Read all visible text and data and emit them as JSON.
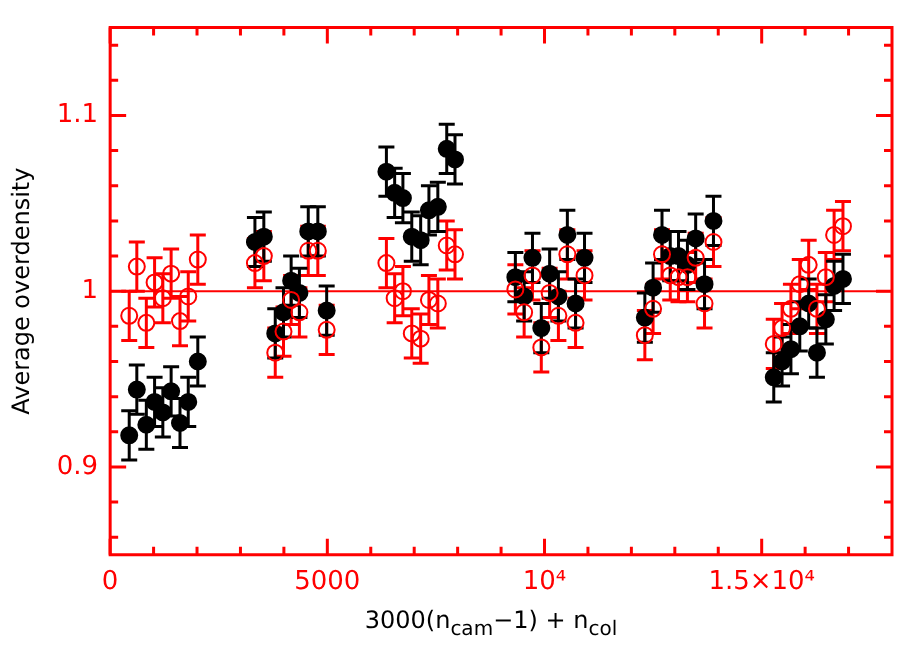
{
  "chart_data": {
    "type": "scatter",
    "xlabel": "3000(n$_{cam}$−1) + n$_{col}$",
    "ylabel": "Average overdensity",
    "xlim": [
      0,
      18000
    ],
    "ylim": [
      0.85,
      1.15
    ],
    "xticks": [
      0,
      {
        "value": 1000,
        "label": null
      },
      {
        "value": 2000,
        "label": null
      },
      {
        "value": 3000,
        "label": null
      },
      {
        "value": 4000,
        "label": null
      },
      5000,
      {
        "value": 6000,
        "label": null
      },
      {
        "value": 7000,
        "label": null
      },
      {
        "value": 8000,
        "label": null
      },
      {
        "value": 9000,
        "label": null
      },
      {
        "value": 10000,
        "label": "10⁴"
      },
      {
        "value": 11000,
        "label": null
      },
      {
        "value": 12000,
        "label": null
      },
      {
        "value": 13000,
        "label": null
      },
      {
        "value": 14000,
        "label": null
      },
      {
        "value": 15000,
        "label": "1.5×10⁴"
      },
      {
        "value": 16000,
        "label": null
      },
      {
        "value": 17000,
        "label": null
      }
    ],
    "yticks": [
      {
        "value": 0.86,
        "label": null
      },
      {
        "value": 0.88,
        "label": null
      },
      0.9,
      {
        "value": 0.92,
        "label": null
      },
      {
        "value": 0.94,
        "label": null
      },
      {
        "value": 0.96,
        "label": null
      },
      {
        "value": 0.98,
        "label": null
      },
      1,
      {
        "value": 1.02,
        "label": null
      },
      {
        "value": 1.04,
        "label": null
      },
      {
        "value": 1.06,
        "label": null
      },
      {
        "value": 1.08,
        "label": null
      },
      1.1,
      {
        "value": 1.12,
        "label": null
      },
      {
        "value": 1.14,
        "label": null
      }
    ],
    "grid": false,
    "legend": false,
    "marker": "circle",
    "ref_lines": [
      {
        "axis": "y",
        "value": 1,
        "color": "#ff0000"
      }
    ],
    "series": [
      {
        "color": "#ff0000",
        "x": [
          439,
          614,
          833,
          1023,
          1213,
          1404,
          1608,
          1798,
          2018,
          3333,
          3538,
          3801,
          3991,
          4167,
          4357,
          4561,
          4781,
          4985,
          6360,
          6550,
          6740,
          6944,
          7149,
          7339,
          7544,
          7749,
          7939,
          9329,
          9531,
          9723,
          9926,
          10118,
          10320,
          10526,
          10715,
          10921,
          12310,
          12500,
          12705,
          12895,
          13085,
          13290,
          13480,
          13684,
          13890,
          15278,
          15469,
          15673,
          15877,
          16082,
          16272,
          16477,
          16667,
          16871
        ],
        "values": [
          0.986,
          1.014,
          0.982,
          1.005,
          0.996,
          1.01,
          0.983,
          0.997,
          1.018,
          1.016,
          1.02,
          0.965,
          0.977,
          0.995,
          0.988,
          1.023,
          1.023,
          0.978,
          1.016,
          0.996,
          1.0,
          0.976,
          0.973,
          0.995,
          0.993,
          1.026,
          1.021,
          1.001,
          0.988,
          1.009,
          0.968,
          0.999,
          0.986,
          1.021,
          0.982,
          1.009,
          0.975,
          0.99,
          1.021,
          1.009,
          1.008,
          1.008,
          1.019,
          0.993,
          1.028,
          0.97,
          0.979,
          0.99,
          1.004,
          1.015,
          0.99,
          1.008,
          1.032,
          1.037
        ],
        "errors": [
          0.014,
          0.014,
          0.014,
          0.014,
          0.014,
          0.014,
          0.014,
          0.014,
          0.014,
          0.014,
          0.014,
          0.014,
          0.014,
          0.014,
          0.014,
          0.014,
          0.014,
          0.014,
          0.014,
          0.014,
          0.014,
          0.014,
          0.014,
          0.014,
          0.014,
          0.014,
          0.014,
          0.014,
          0.014,
          0.014,
          0.014,
          0.014,
          0.014,
          0.014,
          0.014,
          0.014,
          0.014,
          0.014,
          0.014,
          0.014,
          0.014,
          0.014,
          0.014,
          0.014,
          0.014,
          0.014,
          0.014,
          0.014,
          0.014,
          0.014,
          0.014,
          0.014,
          0.014,
          0.014
        ]
      },
      {
        "color": "#000000",
        "x": [
          439,
          614,
          833,
          1023,
          1213,
          1404,
          1608,
          1798,
          2018,
          3333,
          3538,
          3801,
          3991,
          4167,
          4357,
          4561,
          4781,
          4985,
          6360,
          6550,
          6740,
          6944,
          7149,
          7339,
          7544,
          7749,
          7939,
          9329,
          9531,
          9723,
          9926,
          10118,
          10320,
          10526,
          10715,
          10921,
          12310,
          12500,
          12705,
          12895,
          13085,
          13290,
          13480,
          13684,
          13890,
          15278,
          15469,
          15673,
          15877,
          16082,
          16272,
          16477,
          16667,
          16871
        ],
        "values": [
          0.918,
          0.944,
          0.924,
          0.937,
          0.931,
          0.943,
          0.925,
          0.937,
          0.96,
          1.028,
          1.031,
          0.976,
          0.988,
          1.006,
          0.999,
          1.034,
          1.034,
          0.989,
          1.068,
          1.056,
          1.053,
          1.031,
          1.029,
          1.046,
          1.048,
          1.081,
          1.075,
          1.008,
          0.997,
          1.019,
          0.979,
          1.01,
          0.997,
          1.032,
          0.993,
          1.019,
          0.985,
          1.002,
          1.032,
          1.02,
          1.02,
          1.015,
          1.03,
          1.004,
          1.04,
          0.951,
          0.96,
          0.967,
          0.98,
          0.993,
          0.965,
          0.984,
          1.003,
          1.007
        ],
        "errors": [
          0.014,
          0.014,
          0.014,
          0.014,
          0.014,
          0.014,
          0.014,
          0.014,
          0.014,
          0.014,
          0.014,
          0.014,
          0.014,
          0.014,
          0.014,
          0.014,
          0.014,
          0.014,
          0.014,
          0.014,
          0.014,
          0.014,
          0.014,
          0.014,
          0.014,
          0.014,
          0.014,
          0.014,
          0.014,
          0.014,
          0.014,
          0.014,
          0.014,
          0.014,
          0.014,
          0.014,
          0.014,
          0.014,
          0.014,
          0.014,
          0.014,
          0.014,
          0.014,
          0.014,
          0.014,
          0.014,
          0.014,
          0.014,
          0.014,
          0.014,
          0.014,
          0.014,
          0.014,
          0.014
        ]
      }
    ]
  }
}
